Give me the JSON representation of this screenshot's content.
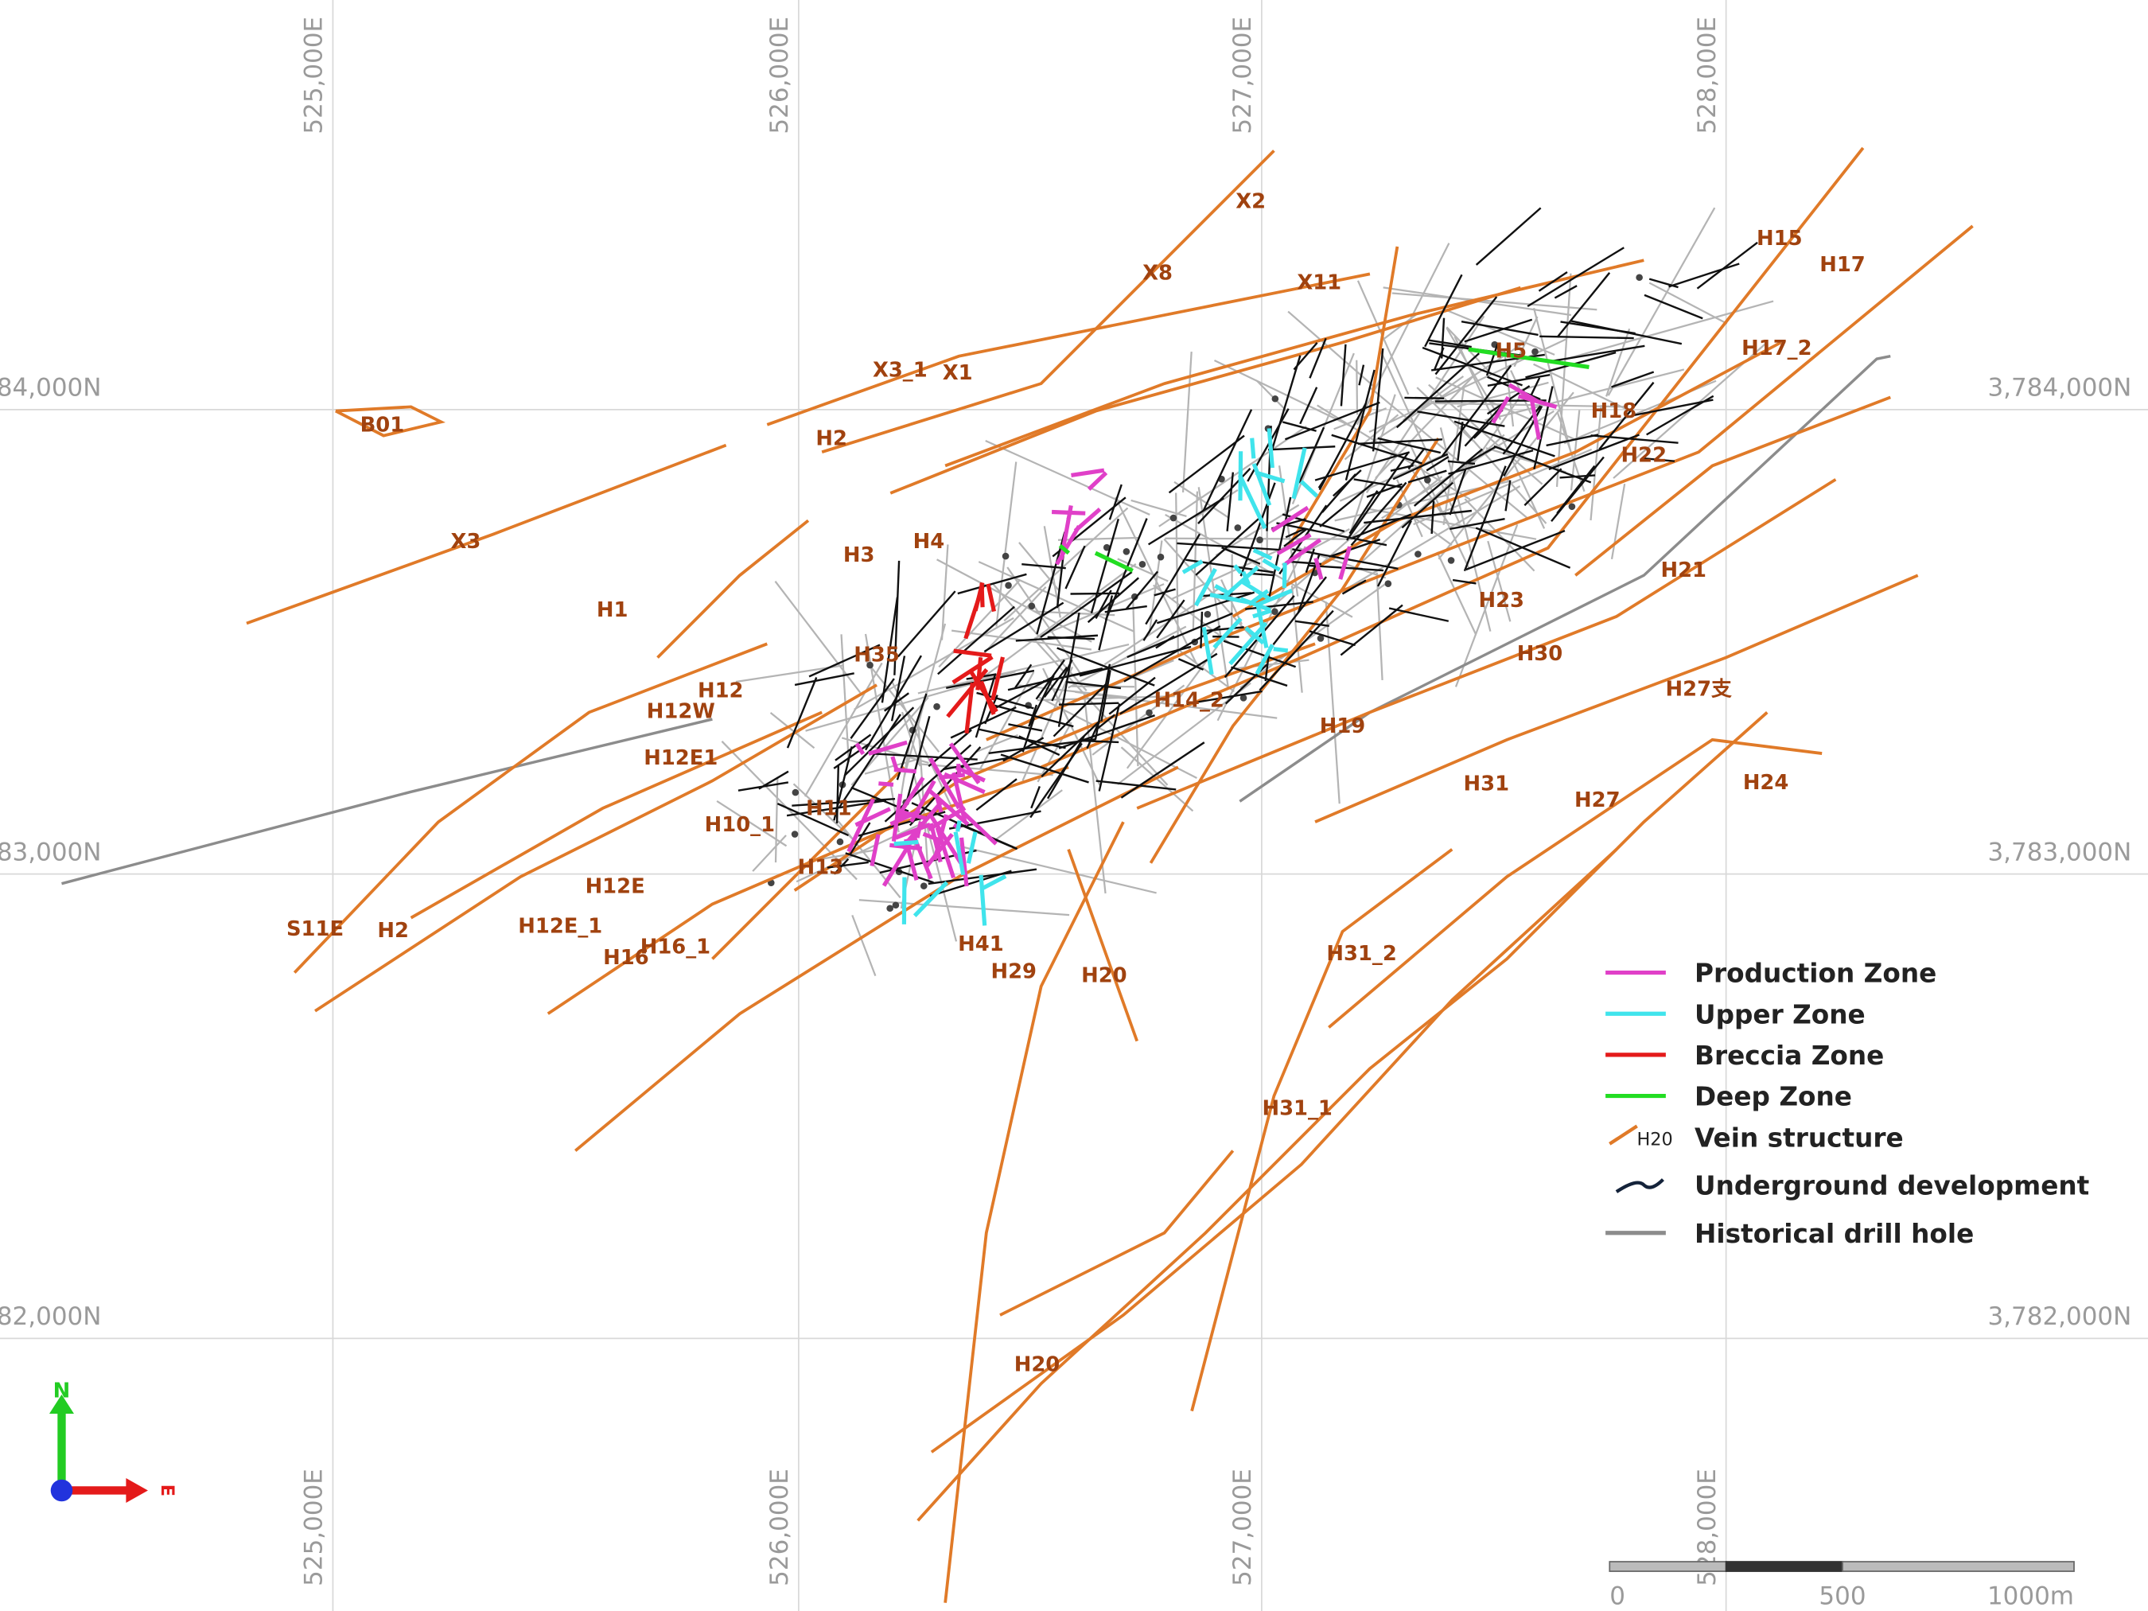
{
  "grid": {
    "eastings": [
      "525,000E",
      "526,000E",
      "527,000E",
      "528,000E"
    ],
    "northings": [
      "3,784,000N",
      "3,783,000N",
      "3,782,000N"
    ]
  },
  "vein_labels": [
    "X2",
    "X8",
    "X11",
    "X3_1",
    "X1",
    "B01",
    "H2",
    "X3",
    "H3",
    "H1",
    "H12",
    "H12W",
    "H12E1",
    "H10_1",
    "H11",
    "H13",
    "H12E",
    "S11E",
    "H2",
    "H12E_1",
    "H16",
    "H16_1",
    "H41",
    "H29",
    "H20",
    "H31_2",
    "H31_1",
    "H20",
    "H15",
    "H17",
    "H17_2",
    "H5",
    "H18",
    "H22",
    "H23",
    "H21",
    "H30",
    "H27支",
    "H19",
    "H31",
    "H27",
    "H24",
    "H14_2",
    "H4",
    "H35"
  ],
  "legend": {
    "items": [
      {
        "name": "Production Zone",
        "color": "#e040c8"
      },
      {
        "name": "Upper Zone",
        "color": "#40e4ec"
      },
      {
        "name": "Breccia Zone",
        "color": "#e41a1a"
      },
      {
        "name": "Deep Zone",
        "color": "#22dd22"
      },
      {
        "name": "Vein structure",
        "color": "#e07a28",
        "sample_label": "H20"
      },
      {
        "name": "Underground development",
        "color": "#14233a"
      },
      {
        "name": "Historical drill hole",
        "color": "#8c8c8c"
      }
    ]
  },
  "scale_bar": [
    "0",
    "500",
    "1000m"
  ],
  "north_arrow": {
    "north": "N",
    "east": "E"
  }
}
